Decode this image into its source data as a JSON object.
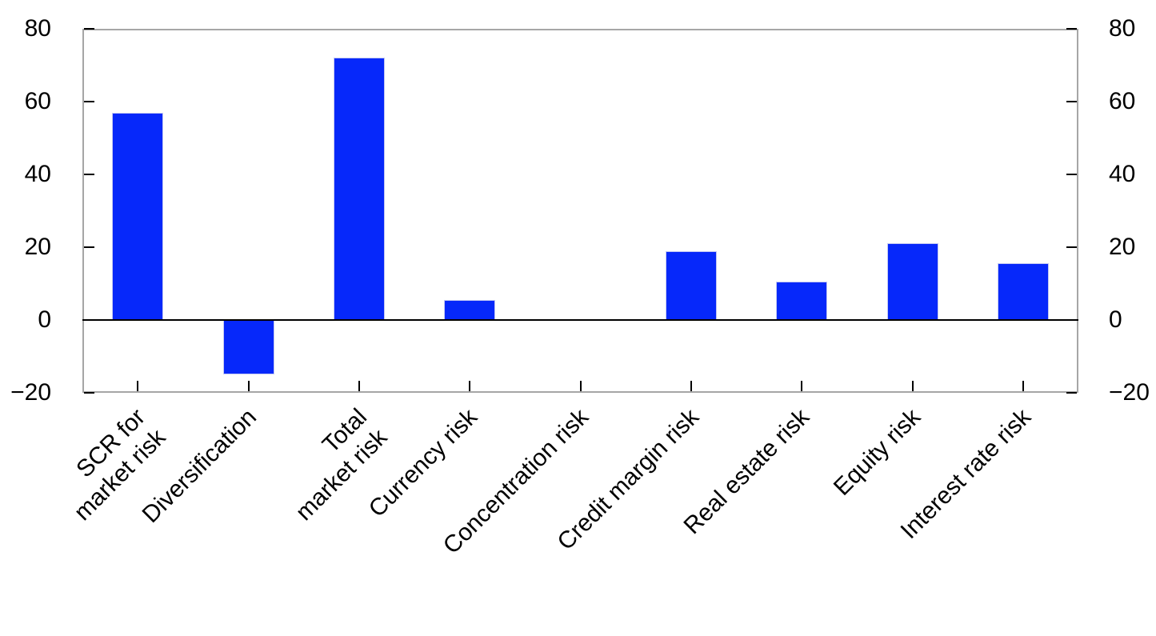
{
  "chart_data": {
    "type": "bar",
    "title": "",
    "xlabel": "",
    "ylabel": "",
    "categories": [
      "SCR for\nmarket risk",
      "Diversification",
      "Total\nmarket risk",
      "Currency risk",
      "Concentration risk",
      "Credit margin risk",
      "Real estate risk",
      "Equity risk",
      "Interest rate risk"
    ],
    "values": [
      57,
      -15,
      72,
      5.5,
      0,
      19,
      10.5,
      21,
      15.5
    ],
    "ylim": [
      -20,
      80
    ],
    "yticks": [
      {
        "value": 80,
        "label": "80"
      },
      {
        "value": 60,
        "label": "60"
      },
      {
        "value": 40,
        "label": "40"
      },
      {
        "value": 20,
        "label": "20"
      },
      {
        "value": 0,
        "label": "0"
      },
      {
        "value": -20,
        "label": "−20"
      }
    ],
    "y_axis_sides": [
      "left",
      "right"
    ],
    "grid": false,
    "legend": null,
    "bar_color": "#0628fa",
    "bar_border_color": "#c3c8f2",
    "frame_color": "#a6a6a6",
    "zero_line_color": "#000000",
    "tick_color": "#000000",
    "text_color": "#000000"
  }
}
